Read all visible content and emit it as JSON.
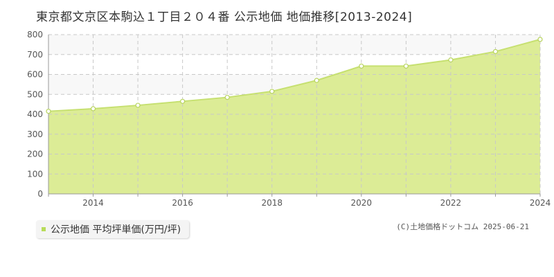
{
  "title": "東京都文京区本駒込１丁目２０４番 公示地価 地価推移[2013-2024]",
  "legend_label": "公示地価 平均坪単価(万円/坪)",
  "copyright": "(C)土地価格ドットコム 2025-06-21",
  "colors": {
    "area_fill": "#dcec96",
    "line": "#c6e070",
    "marker_stroke": "#b8d45e",
    "legend_swatch": "#b8dc5a",
    "top_band": "#f8f8f8",
    "grid": "#c8c8c8"
  },
  "chart_data": {
    "type": "area",
    "x": [
      2013,
      2014,
      2015,
      2016,
      2017,
      2018,
      2019,
      2020,
      2021,
      2022,
      2023,
      2024
    ],
    "series": [
      {
        "name": "公示地価 平均坪単価(万円/坪)",
        "values": [
          415,
          428,
          445,
          465,
          485,
          515,
          570,
          642,
          642,
          673,
          715,
          776
        ]
      }
    ],
    "xlim": [
      2013,
      2024
    ],
    "ylim": [
      0,
      800
    ],
    "y_ticks": [
      "0",
      "100",
      "200",
      "300",
      "400",
      "500",
      "600",
      "700",
      "800"
    ],
    "x_tick_labels": [
      "2014",
      "2016",
      "2018",
      "2020",
      "2022",
      "2024"
    ],
    "grid": true,
    "legend_position": "bottom-left"
  }
}
